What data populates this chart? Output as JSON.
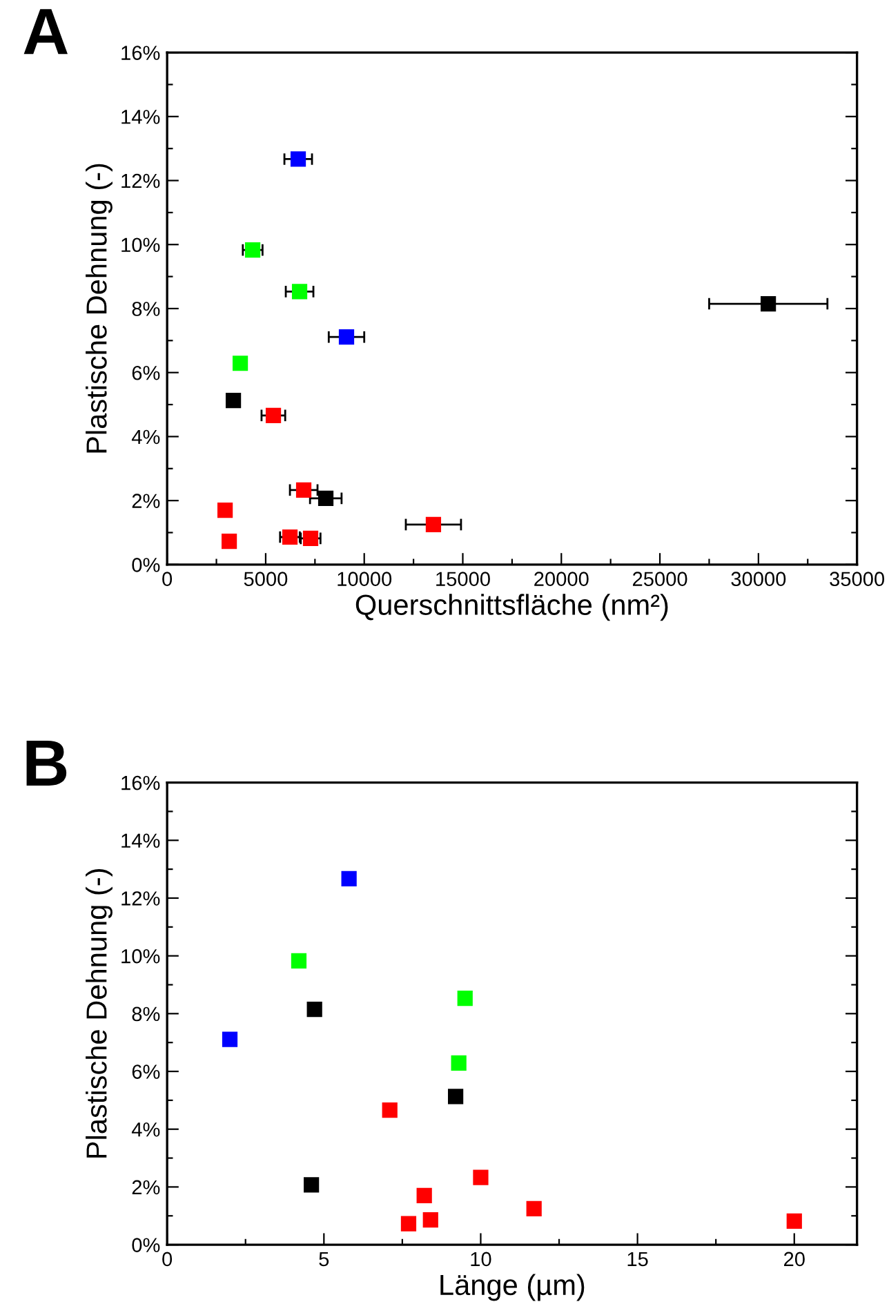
{
  "chart_data": [
    {
      "type": "scatter",
      "title": "A",
      "xlabel": "Querschnittsfläche (nm²)",
      "ylabel": "Plastische Dehnung (-)",
      "marker": "square",
      "grid": false,
      "legend": false,
      "xlim": [
        0,
        35000
      ],
      "ylim": [
        0,
        16
      ],
      "xticks": [
        0,
        5000,
        10000,
        15000,
        20000,
        25000,
        30000,
        35000,
        {
          "value": 2500,
          "label": null
        },
        {
          "value": 7500,
          "label": null
        },
        {
          "value": 12500,
          "label": null
        },
        {
          "value": 17500,
          "label": null
        },
        {
          "value": 22500,
          "label": null
        },
        {
          "value": 27500,
          "label": null
        },
        {
          "value": 32500,
          "label": null
        }
      ],
      "yticks": [
        {
          "value": 0,
          "label": "0%"
        },
        {
          "value": 2,
          "label": "2%"
        },
        {
          "value": 4,
          "label": "4%"
        },
        {
          "value": 6,
          "label": "6%"
        },
        {
          "value": 8,
          "label": "8%"
        },
        {
          "value": 10,
          "label": "10%"
        },
        {
          "value": 12,
          "label": "12%"
        },
        {
          "value": 14,
          "label": "14%"
        },
        {
          "value": 16,
          "label": "16%"
        },
        {
          "value": 1,
          "label": null
        },
        {
          "value": 3,
          "label": null
        },
        {
          "value": 5,
          "label": null
        },
        {
          "value": 7,
          "label": null
        },
        {
          "value": 9,
          "label": null
        },
        {
          "value": 11,
          "label": null
        },
        {
          "value": 13,
          "label": null
        },
        {
          "value": 15,
          "label": null
        }
      ],
      "series": [
        {
          "color": "#0000ff",
          "x": [
            6650,
            9100
          ],
          "values": [
            12.67,
            7.11
          ],
          "xerrors": [
            700,
            900
          ]
        },
        {
          "color": "#00ff00",
          "x": [
            4340,
            6720,
            3710
          ],
          "values": [
            9.83,
            8.53,
            6.29
          ],
          "xerrors": [
            500,
            700,
            null
          ]
        },
        {
          "color": "#000000",
          "x": [
            30500,
            3360,
            8050
          ],
          "values": [
            8.15,
            5.13,
            2.07
          ],
          "xerrors": [
            3000,
            200,
            800
          ]
        },
        {
          "color": "#ff0000",
          "x": [
            5390,
            6930,
            2940,
            13510,
            6230,
            7280,
            3150
          ],
          "values": [
            4.66,
            2.33,
            1.7,
            1.25,
            0.86,
            0.82,
            0.73
          ],
          "xerrors": [
            600,
            700,
            null,
            1400,
            500,
            500,
            null
          ]
        }
      ]
    },
    {
      "type": "scatter",
      "title": "B",
      "xlabel": "Länge (µm)",
      "ylabel": "Plastische Dehnung (-)",
      "marker": "square",
      "grid": false,
      "legend": false,
      "xlim": [
        0,
        22
      ],
      "ylim": [
        0,
        16
      ],
      "xticks": [
        0,
        5,
        10,
        15,
        20,
        {
          "value": 2.5,
          "label": null
        },
        {
          "value": 7.5,
          "label": null
        },
        {
          "value": 12.5,
          "label": null
        },
        {
          "value": 17.5,
          "label": null
        }
      ],
      "yticks": [
        {
          "value": 0,
          "label": "0%"
        },
        {
          "value": 2,
          "label": "2%"
        },
        {
          "value": 4,
          "label": "4%"
        },
        {
          "value": 6,
          "label": "6%"
        },
        {
          "value": 8,
          "label": "8%"
        },
        {
          "value": 10,
          "label": "10%"
        },
        {
          "value": 12,
          "label": "12%"
        },
        {
          "value": 14,
          "label": "14%"
        },
        {
          "value": 16,
          "label": "16%"
        },
        {
          "value": 1,
          "label": null
        },
        {
          "value": 3,
          "label": null
        },
        {
          "value": 5,
          "label": null
        },
        {
          "value": 7,
          "label": null
        },
        {
          "value": 9,
          "label": null
        },
        {
          "value": 11,
          "label": null
        },
        {
          "value": 13,
          "label": null
        },
        {
          "value": 15,
          "label": null
        }
      ],
      "series": [
        {
          "color": "#0000ff",
          "x": [
            5.8,
            2.0
          ],
          "values": [
            12.67,
            7.11
          ]
        },
        {
          "color": "#00ff00",
          "x": [
            4.2,
            9.5,
            9.3
          ],
          "values": [
            9.83,
            8.53,
            6.29
          ]
        },
        {
          "color": "#000000",
          "x": [
            4.7,
            9.2,
            4.6
          ],
          "values": [
            8.15,
            5.13,
            2.07
          ]
        },
        {
          "color": "#ff0000",
          "x": [
            7.1,
            10.0,
            8.2,
            11.7,
            8.4,
            20.0,
            7.7
          ],
          "values": [
            4.66,
            2.33,
            1.7,
            1.25,
            0.86,
            0.82,
            0.73
          ]
        }
      ]
    }
  ]
}
